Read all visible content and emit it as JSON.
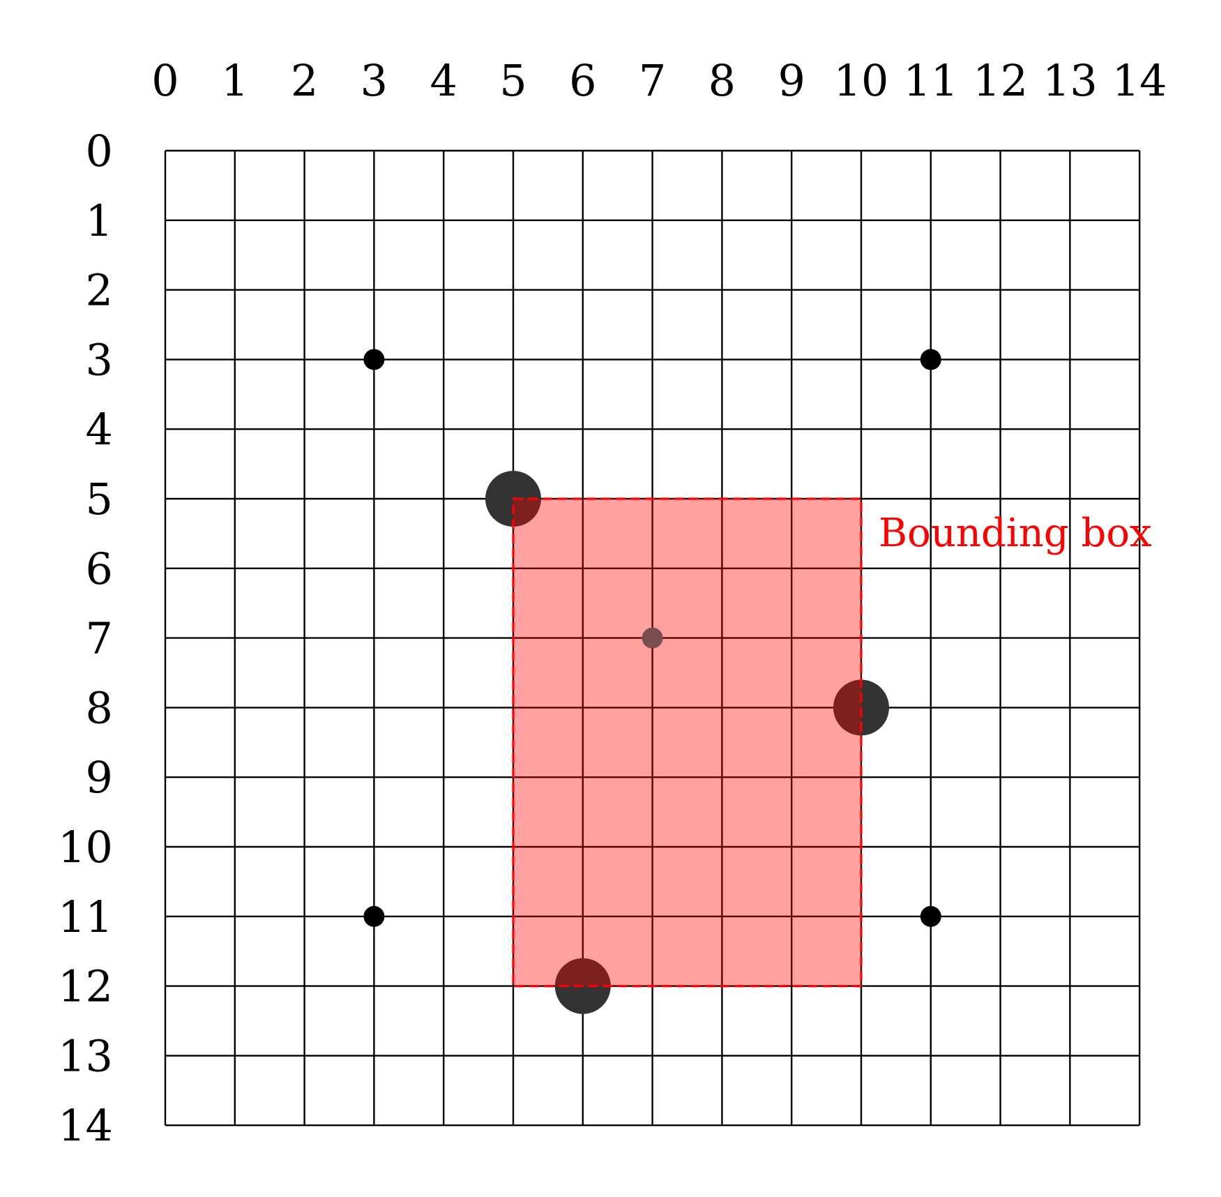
{
  "board": {
    "size": 15,
    "column_labels": [
      "0",
      "1",
      "2",
      "3",
      "4",
      "5",
      "6",
      "7",
      "8",
      "9",
      "10",
      "11",
      "12",
      "13",
      "14"
    ],
    "row_labels": [
      "0",
      "1",
      "2",
      "3",
      "4",
      "5",
      "6",
      "7",
      "8",
      "9",
      "10",
      "11",
      "12",
      "13",
      "14"
    ],
    "line_color": "#000000",
    "background_color": "#ffffff"
  },
  "star_points": [
    {
      "col": 3,
      "row": 3
    },
    {
      "col": 11,
      "row": 3
    },
    {
      "col": 3,
      "row": 11
    },
    {
      "col": 11,
      "row": 11
    }
  ],
  "stones": [
    {
      "col": 5,
      "row": 5,
      "color": "#333333"
    },
    {
      "col": 10,
      "row": 8,
      "color": "#333333"
    },
    {
      "col": 6,
      "row": 12,
      "color": "#333333"
    }
  ],
  "bounding_box": {
    "label": "Bounding box",
    "col_min": 5,
    "col_max": 10,
    "row_min": 5,
    "row_max": 12,
    "stroke_color": "#ff0000",
    "fill_color": "#ff0000",
    "fill_opacity": 0.15
  },
  "center_point": {
    "col": 7,
    "row": 7,
    "color": "#7a4f50"
  }
}
